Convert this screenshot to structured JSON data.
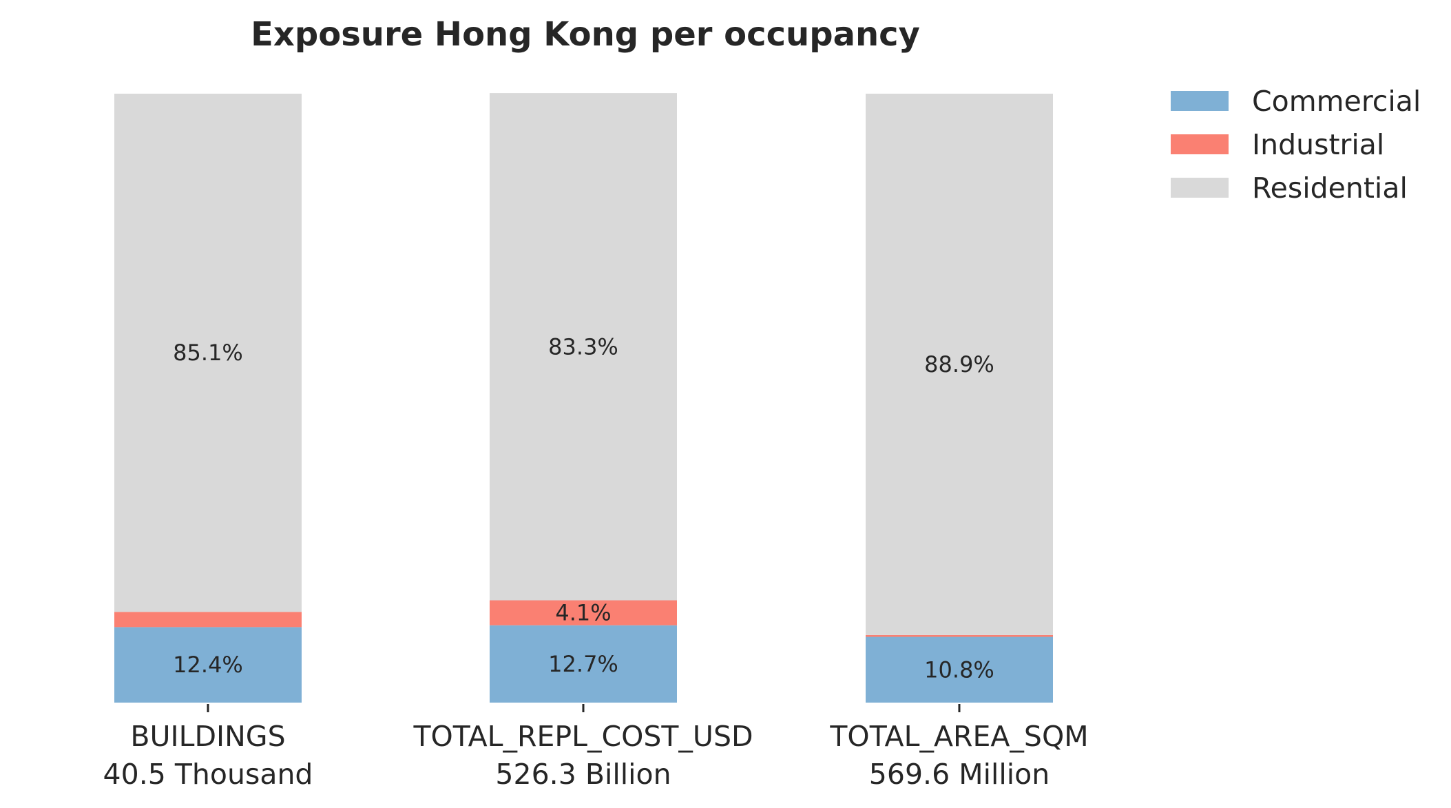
{
  "chart_data": {
    "type": "bar",
    "stacked": true,
    "normalized": true,
    "title": "Exposure Hong Kong per occupancy",
    "xlabel": "",
    "ylabel": "",
    "ylim": [
      0,
      100
    ],
    "grid": false,
    "legend_position": "top-right",
    "categories": [
      "BUILDINGS",
      "TOTAL_REPL_COST_USD",
      "TOTAL_AREA_SQM"
    ],
    "category_totals": [
      "40.5 Thousand",
      "526.3 Billion",
      "569.6 Million"
    ],
    "series": [
      {
        "name": "Commercial",
        "color": "#7fb0d5",
        "values": [
          12.4,
          12.7,
          10.8
        ],
        "labels": [
          "12.4%",
          "12.7%",
          "10.8%"
        ]
      },
      {
        "name": "Industrial",
        "color": "#fa8072",
        "values": [
          2.5,
          4.1,
          0.3
        ],
        "labels": [
          "",
          "4.1%",
          ""
        ]
      },
      {
        "name": "Residential",
        "color": "#d9d9d9",
        "values": [
          85.1,
          83.3,
          88.9
        ],
        "labels": [
          "85.1%",
          "83.3%",
          "88.9%"
        ]
      }
    ]
  }
}
